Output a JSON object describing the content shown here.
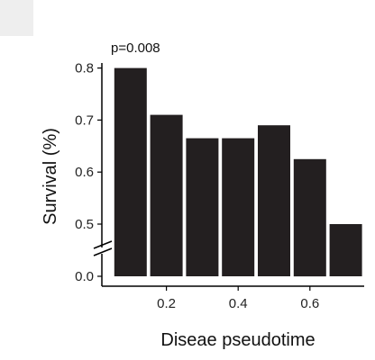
{
  "chart_data": {
    "type": "bar",
    "title": "",
    "annotation": "p=0.008",
    "xlabel": "Diseae pseudotime",
    "ylabel": "Survival (%)",
    "x_ticks": [
      "0.2",
      "0.4",
      "0.6"
    ],
    "y_ticks": [
      "0.0",
      "0.5",
      "0.6",
      "0.7",
      "0.8"
    ],
    "y_axis_break": true,
    "ylim": [
      0.45,
      0.8
    ],
    "bar_color": "#231f20",
    "bars": [
      {
        "x": 0.1,
        "value": 0.8
      },
      {
        "x": 0.2,
        "value": 0.71
      },
      {
        "x": 0.3,
        "value": 0.665
      },
      {
        "x": 0.4,
        "value": 0.665
      },
      {
        "x": 0.5,
        "value": 0.69
      },
      {
        "x": 0.6,
        "value": 0.625
      },
      {
        "x": 0.7,
        "value": 0.5
      }
    ]
  }
}
